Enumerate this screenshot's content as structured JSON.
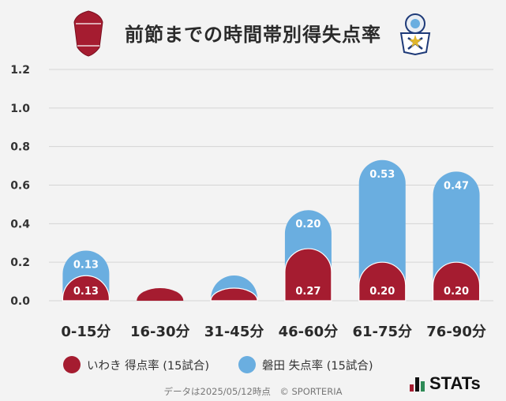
{
  "title": "前節までの時間帯別得失点率",
  "teams": {
    "left_crest": "IWAKI FC",
    "right_crest_icon": "jubilo-iwata-crest-icon"
  },
  "colors": {
    "home": "#a51c30",
    "away": "#6aaee0",
    "grid": "#d4d4d4",
    "label": "#ffffff"
  },
  "legend": {
    "home_label": "いわき 得点率 (15試合)",
    "away_label": "磐田 失点率 (15試合)"
  },
  "footer": "データは2025/05/12時点　© SPORTERIA",
  "brand": "STATs",
  "chart_data": {
    "type": "bar",
    "categories": [
      "0-15分",
      "16-30分",
      "31-45分",
      "46-60分",
      "61-75分",
      "76-90分"
    ],
    "ylim": [
      0,
      1.2
    ],
    "yticks": [
      "0.0",
      "0.2",
      "0.4",
      "0.6",
      "0.8",
      "1.0",
      "1.2"
    ],
    "grid": true,
    "series": [
      {
        "name": "いわき 得点率 (15試合)",
        "values": [
          0.13,
          0,
          0,
          0.27,
          0.2,
          0.2
        ],
        "labels": [
          "0.13",
          "",
          "",
          "0.27",
          "0.20",
          "0.20"
        ]
      },
      {
        "name": "磐田 失点率 (15試合)",
        "values": [
          0.13,
          0,
          0,
          0.2,
          0.53,
          0.47
        ],
        "labels": [
          "0.13",
          "",
          "",
          "0.20",
          "0.53",
          "0.47"
        ]
      }
    ]
  }
}
